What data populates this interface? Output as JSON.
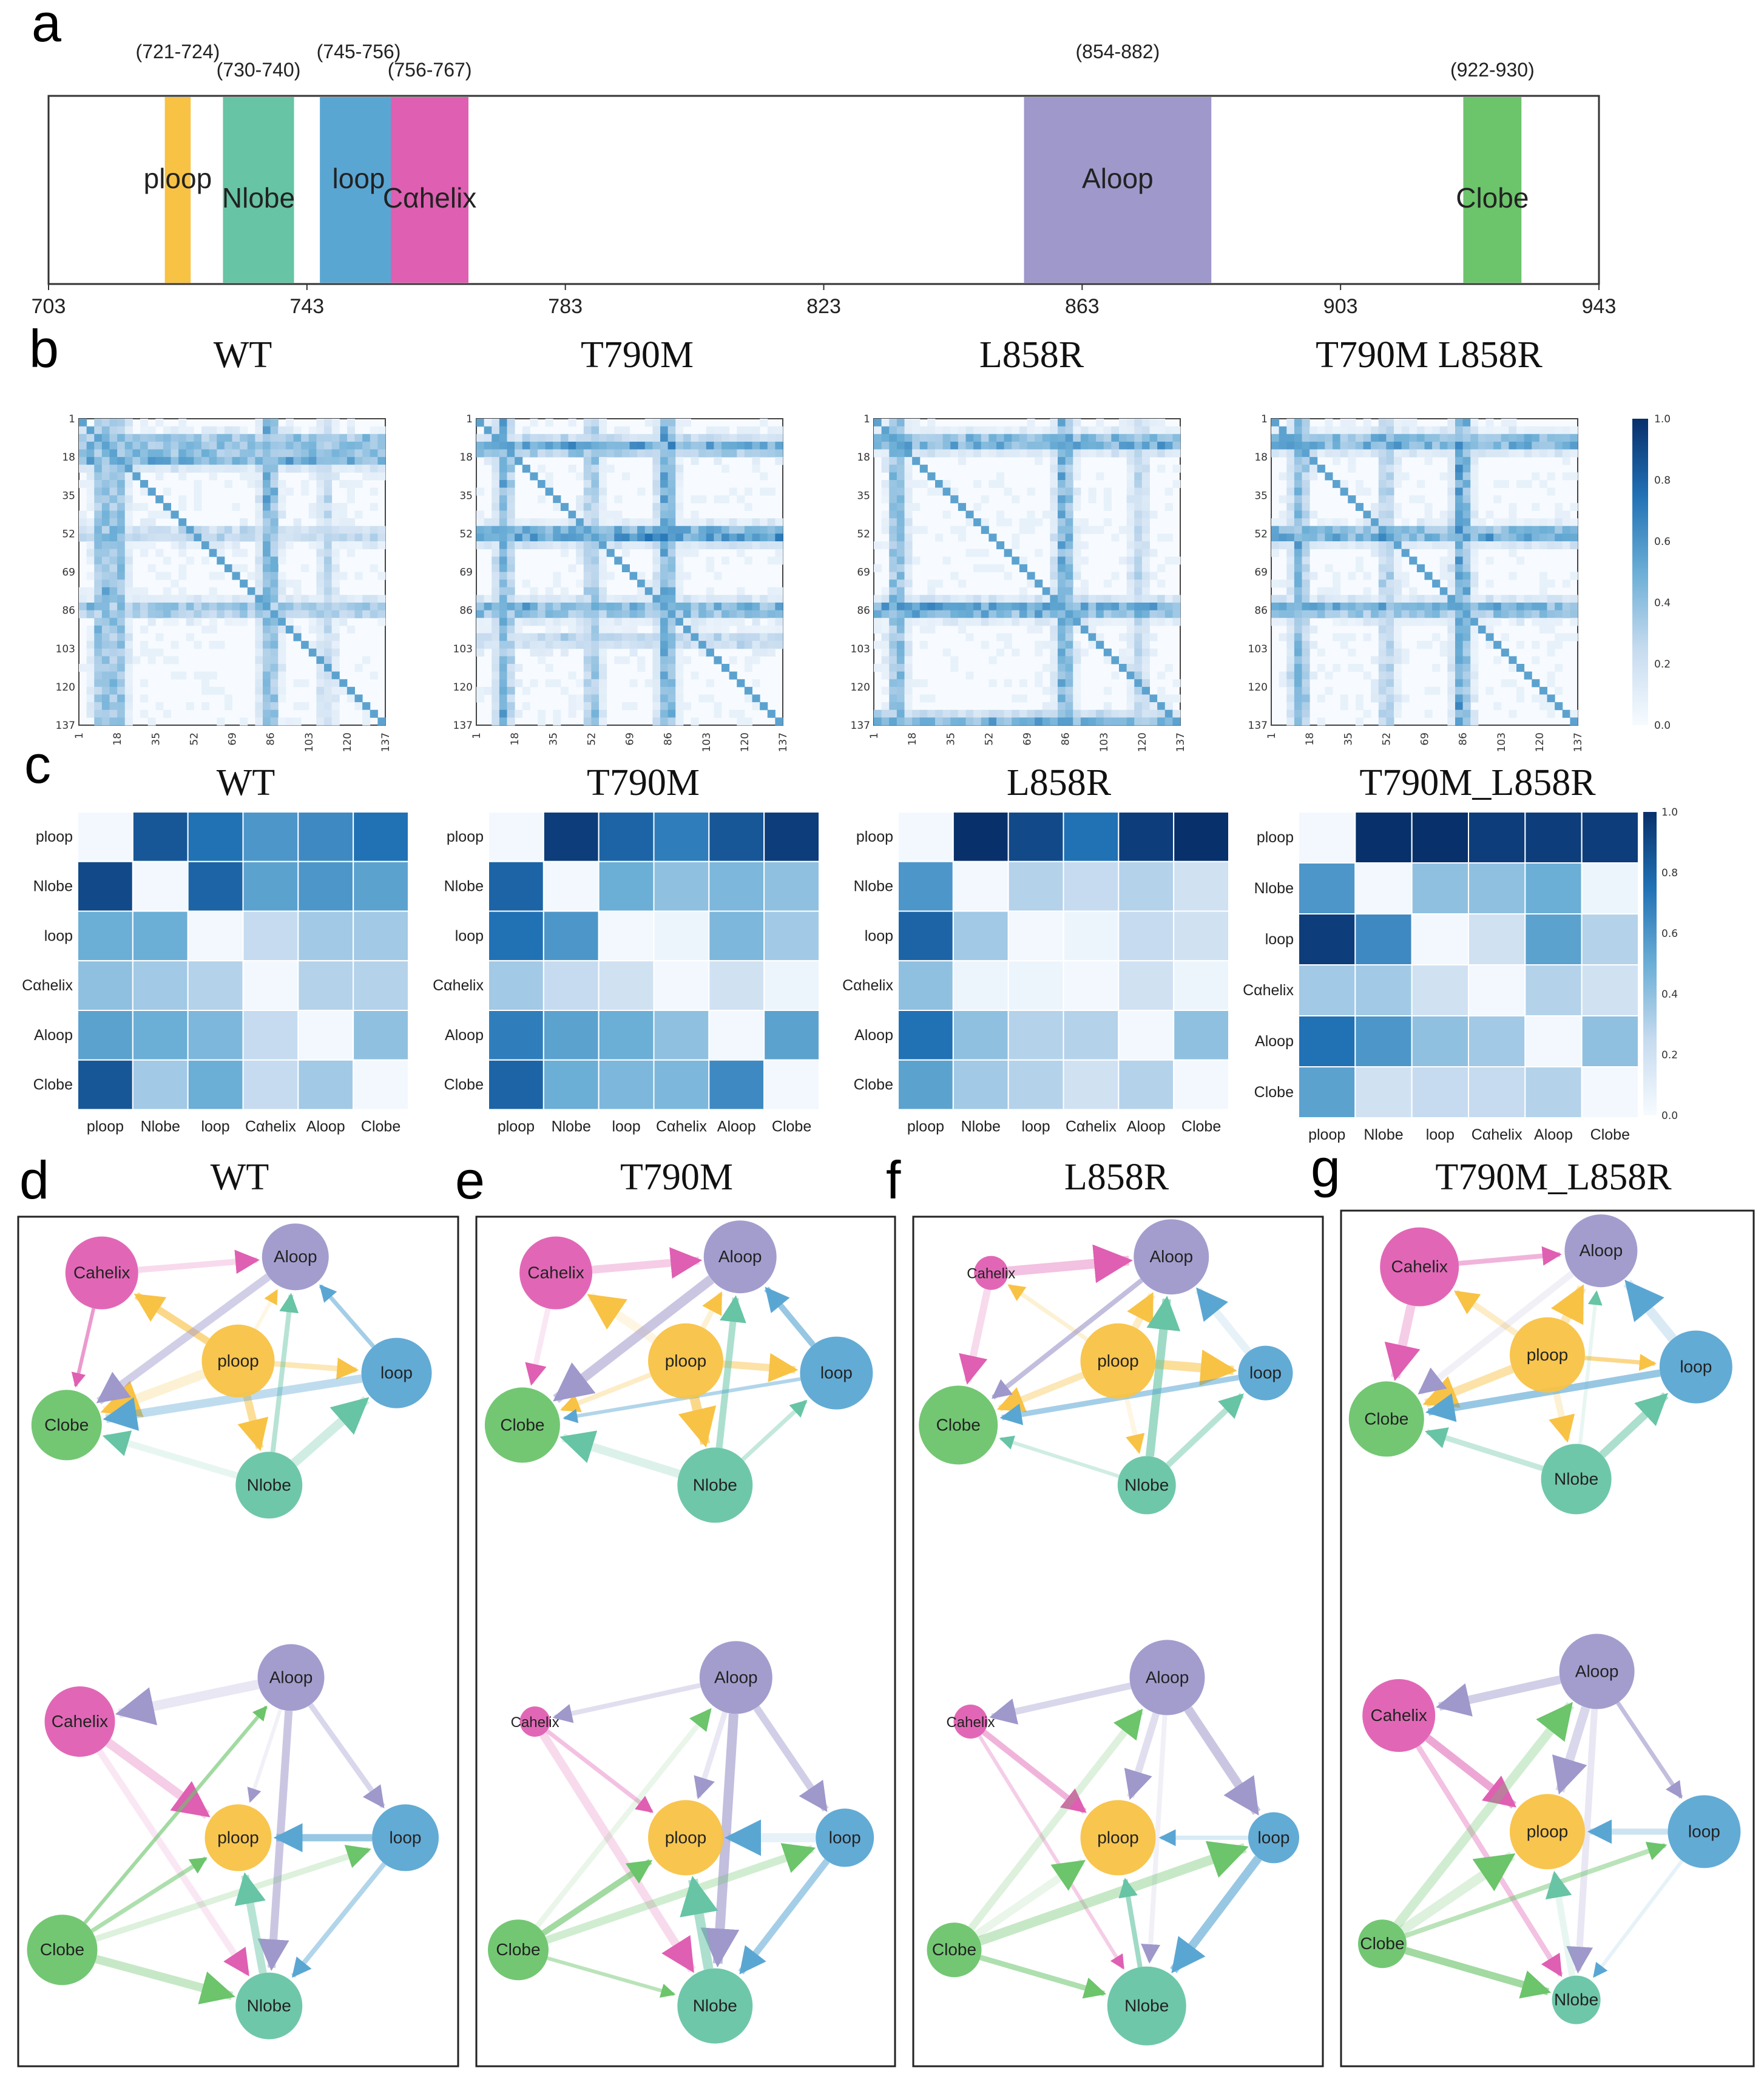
{
  "panel_letters": [
    "a",
    "b",
    "c",
    "d",
    "e",
    "f",
    "g"
  ],
  "colors": {
    "ploop": "#f8c244",
    "Nlobe": "#67c4a5",
    "loop": "#5aa6d3",
    "Cahelix": "#df5fb2",
    "Aloop": "#9e98cb",
    "Clobe": "#6cc46b"
  },
  "domain_map": {
    "axis_ticks": [
      "703",
      "743",
      "783",
      "823",
      "863",
      "903",
      "943"
    ],
    "axis_range": [
      703,
      943
    ],
    "regions": [
      {
        "name": "ploop",
        "range_label": "(721-724)",
        "start": 721,
        "end": 724,
        "color": "#f8c244"
      },
      {
        "name": "Nlobe",
        "range_label": "(730-740)",
        "start": 730,
        "end": 740,
        "color": "#67c4a5"
      },
      {
        "name": "loop",
        "range_label": "(745-756)",
        "start": 745,
        "end": 756,
        "color": "#5aa6d3"
      },
      {
        "name": "Cαhelix",
        "range_label": "(756-767)",
        "start": 756,
        "end": 767,
        "color": "#df5fb2"
      },
      {
        "name": "Aloop",
        "range_label": "(854-882)",
        "start": 854,
        "end": 882,
        "color": "#9e98cb"
      },
      {
        "name": "Clobe",
        "range_label": "(922-930)",
        "start": 922,
        "end": 930,
        "color": "#6cc46b"
      }
    ]
  },
  "chart_data": [
    {
      "type": "heatmap",
      "panel": "b",
      "titles": [
        "WT",
        "T790M",
        "L858R",
        "T790M  L858R"
      ],
      "tick_labels": [
        "1",
        "18",
        "35",
        "52",
        "69",
        "86",
        "103",
        "120",
        "137"
      ],
      "colorbar_ticks": [
        "1.0",
        "0.8",
        "0.6",
        "0.4",
        "0.2",
        "0.0"
      ],
      "colorbar_range": [
        0.0,
        1.0
      ]
    },
    {
      "type": "heatmap",
      "panel": "c",
      "titles": [
        "WT",
        "T790M",
        "L858R",
        "T790M_L858R"
      ],
      "rows": [
        "ploop",
        "Nlobe",
        "loop",
        "Cαhelix",
        "Aloop",
        "Clobe"
      ],
      "cols": [
        "ploop",
        "Nlobe",
        "loop",
        "Cαhelix",
        "Aloop",
        "Clobe"
      ],
      "colorbar_ticks": [
        "1.0",
        "0.8",
        "0.6",
        "0.4",
        "0.2",
        "0.0"
      ],
      "matrices": [
        [
          [
            0,
            0.85,
            0.75,
            0.6,
            0.65,
            0.75
          ],
          [
            0.9,
            0,
            0.8,
            0.55,
            0.6,
            0.55
          ],
          [
            0.5,
            0.5,
            0,
            0.25,
            0.35,
            0.35
          ],
          [
            0.4,
            0.35,
            0.3,
            0,
            0.3,
            0.3
          ],
          [
            0.55,
            0.5,
            0.45,
            0.25,
            0,
            0.4
          ],
          [
            0.85,
            0.35,
            0.5,
            0.25,
            0.35,
            0
          ]
        ],
        [
          [
            0,
            0.95,
            0.8,
            0.7,
            0.85,
            0.95
          ],
          [
            0.8,
            0,
            0.5,
            0.4,
            0.45,
            0.4
          ],
          [
            0.75,
            0.6,
            0.05,
            0.05,
            0.45,
            0.35
          ],
          [
            0.35,
            0.25,
            0.2,
            0,
            0.2,
            0.05
          ],
          [
            0.7,
            0.55,
            0.5,
            0.4,
            0,
            0.55
          ],
          [
            0.8,
            0.5,
            0.45,
            0.45,
            0.65,
            0
          ]
        ],
        [
          [
            0,
            1.0,
            0.9,
            0.75,
            0.95,
            1.0
          ],
          [
            0.6,
            0,
            0.3,
            0.25,
            0.3,
            0.2
          ],
          [
            0.8,
            0.35,
            0.05,
            0.05,
            0.25,
            0.2
          ],
          [
            0.4,
            0.05,
            0.05,
            0.05,
            0.2,
            0.05
          ],
          [
            0.75,
            0.4,
            0.3,
            0.3,
            0,
            0.4
          ],
          [
            0.55,
            0.35,
            0.3,
            0.2,
            0.3,
            0
          ]
        ],
        [
          [
            0,
            1.0,
            1.0,
            0.95,
            0.95,
            0.95
          ],
          [
            0.6,
            0,
            0.4,
            0.4,
            0.5,
            0.05
          ],
          [
            0.95,
            0.65,
            0,
            0.2,
            0.55,
            0.3
          ],
          [
            0.35,
            0.35,
            0.2,
            0,
            0.3,
            0.2
          ],
          [
            0.75,
            0.6,
            0.4,
            0.35,
            0,
            0.4
          ],
          [
            0.55,
            0.2,
            0.25,
            0.25,
            0.3,
            0
          ]
        ]
      ]
    }
  ],
  "networks": {
    "panels": [
      {
        "letter": "d",
        "title": "WT"
      },
      {
        "letter": "e",
        "title": "T790M"
      },
      {
        "letter": "f",
        "title": "L858R"
      },
      {
        "letter": "g",
        "title": "T790M_L858R"
      }
    ],
    "node_labels": {
      "ploop": "ploop",
      "Nlobe": "Nlobe",
      "loop": "loop",
      "Cahelix": "Cahelix",
      "Aloop": "Aloop",
      "Clobe": "Clobe"
    },
    "top_edges": [
      [
        "ploop",
        "Aloop"
      ],
      [
        "ploop",
        "Nlobe"
      ],
      [
        "ploop",
        "loop"
      ],
      [
        "ploop",
        "Clobe"
      ],
      [
        "ploop",
        "Cahelix"
      ],
      [
        "Nlobe",
        "Aloop"
      ],
      [
        "Nlobe",
        "loop"
      ],
      [
        "Nlobe",
        "Clobe"
      ],
      [
        "loop",
        "Aloop"
      ],
      [
        "loop",
        "Clobe"
      ],
      [
        "Cahelix",
        "Aloop"
      ],
      [
        "Cahelix",
        "Clobe"
      ],
      [
        "Aloop",
        "Clobe"
      ]
    ],
    "bottom_edges": [
      [
        "Aloop",
        "ploop"
      ],
      [
        "Aloop",
        "Nlobe"
      ],
      [
        "Aloop",
        "loop"
      ],
      [
        "Aloop",
        "Cahelix"
      ],
      [
        "loop",
        "ploop"
      ],
      [
        "loop",
        "Nlobe"
      ],
      [
        "Cahelix",
        "ploop"
      ],
      [
        "Cahelix",
        "Nlobe"
      ],
      [
        "Clobe",
        "ploop"
      ],
      [
        "Clobe",
        "Nlobe"
      ],
      [
        "Clobe",
        "loop"
      ],
      [
        "Clobe",
        "Aloop"
      ],
      [
        "Nlobe",
        "ploop"
      ]
    ]
  }
}
